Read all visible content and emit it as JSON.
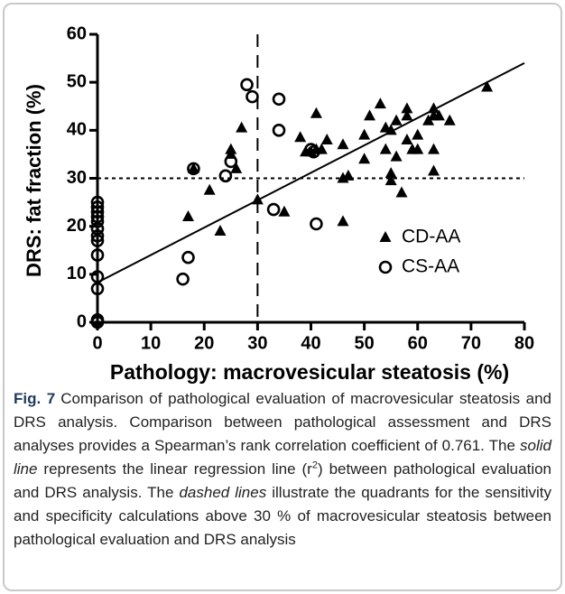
{
  "chart_data": {
    "type": "scatter",
    "xlabel": "Pathology: macrovesicular steatosis (%)",
    "ylabel": "DRS: fat fraction (%)",
    "xlim": [
      0,
      80
    ],
    "ylim": [
      0,
      60
    ],
    "xticks": [
      0,
      10,
      20,
      30,
      40,
      50,
      60,
      70,
      80
    ],
    "yticks": [
      0,
      10,
      20,
      30,
      40,
      50,
      60
    ],
    "legend": "right",
    "series": [
      {
        "name": "CD-AA",
        "marker": "triangle",
        "color": "#000000",
        "x": [
          17,
          18,
          21,
          23,
          25,
          25,
          26,
          27,
          30,
          35,
          38,
          39,
          40,
          41,
          41,
          42,
          43,
          46,
          46,
          46,
          47,
          50,
          50,
          51,
          53,
          54,
          54,
          55,
          55,
          55,
          56,
          56,
          57,
          58,
          58,
          58,
          59,
          60,
          60,
          62,
          63,
          63,
          63,
          63,
          64,
          66,
          73
        ],
        "values": [
          22,
          32,
          27.5,
          19,
          36,
          35,
          32,
          40.5,
          25.5,
          23,
          38.5,
          35.5,
          35.5,
          36,
          43.5,
          36,
          38,
          37,
          30,
          21,
          30.5,
          34,
          39,
          43,
          45.5,
          40.5,
          36,
          31,
          29.5,
          40,
          42,
          34.5,
          27,
          43,
          44.5,
          38,
          36,
          39,
          36,
          42,
          36,
          31.5,
          44.5,
          43,
          43,
          42,
          49
        ]
      },
      {
        "name": "CS-AA",
        "marker": "circle",
        "color": "#000000",
        "x": [
          0,
          0,
          0,
          0,
          0,
          0,
          0,
          0,
          0,
          0,
          0,
          0,
          0,
          16,
          17,
          18,
          24,
          25,
          28,
          29,
          33,
          34,
          34,
          40,
          41,
          40.5
        ],
        "values": [
          0,
          0.5,
          7,
          9.5,
          14,
          17,
          18,
          19.5,
          21,
          22,
          23,
          24,
          25,
          9,
          13.5,
          32,
          30.5,
          33.5,
          49.5,
          47,
          23.5,
          46.5,
          40,
          36,
          20.5,
          35.5
        ]
      }
    ],
    "regression_line": {
      "x": [
        0,
        80
      ],
      "y": [
        8.3,
        54
      ]
    },
    "threshold_x": 30,
    "threshold_y": 30
  },
  "caption": {
    "label": "Fig. 7",
    "parts": [
      {
        "text": "Comparison of pathological evaluation of macrovesicular steatosis and DRS analysis. Comparison between pathological assessment and DRS analyses provides a Spearman’s rank correlation coefficient of 0.761. The ",
        "style": "normal"
      },
      {
        "text": "solid line",
        "style": "italic"
      },
      {
        "text": " represents the linear regression line (r",
        "style": "normal"
      },
      {
        "text": "2",
        "style": "sup"
      },
      {
        "text": ") between pathological evaluation and DRS analysis. The ",
        "style": "normal"
      },
      {
        "text": "dashed lines",
        "style": "italic"
      },
      {
        "text": " illustrate the quadrants for the sensitivity and specificity calculations above 30 % of macrovesicular steatosis between pathological evaluation and DRS analysis",
        "style": "normal"
      }
    ]
  }
}
